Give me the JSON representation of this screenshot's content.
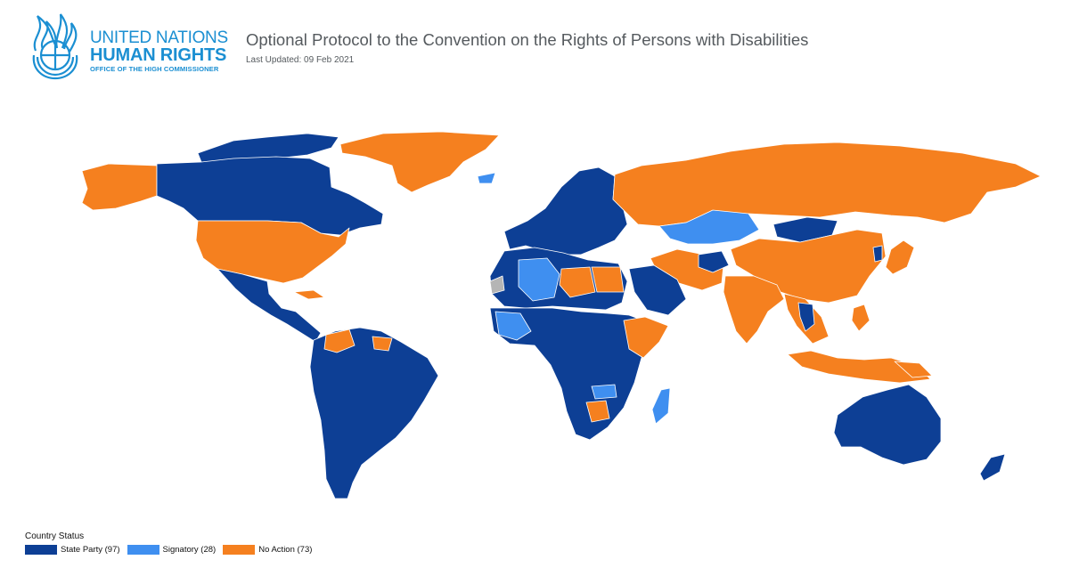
{
  "logo": {
    "line1": "UNITED NATIONS",
    "line2": "HUMAN RIGHTS",
    "line3": "OFFICE OF THE HIGH COMMISSIONER",
    "color": "#1b8fd2"
  },
  "header": {
    "title": "Optional Protocol to the Convention on the Rights of Persons with Disabilities",
    "updated": "Last Updated: 09 Feb 2021"
  },
  "colors": {
    "state_party": "#0d3f95",
    "signatory": "#3f8ff0",
    "no_action": "#f5801f",
    "no_data": "#b5b5b5",
    "border": "#ffffff"
  },
  "legend": {
    "title": "Country Status",
    "items": [
      {
        "key": "state_party",
        "label": "State Party (97)"
      },
      {
        "key": "signatory",
        "label": "Signatory (28)"
      },
      {
        "key": "no_action",
        "label": "No Action (73)"
      }
    ]
  }
}
